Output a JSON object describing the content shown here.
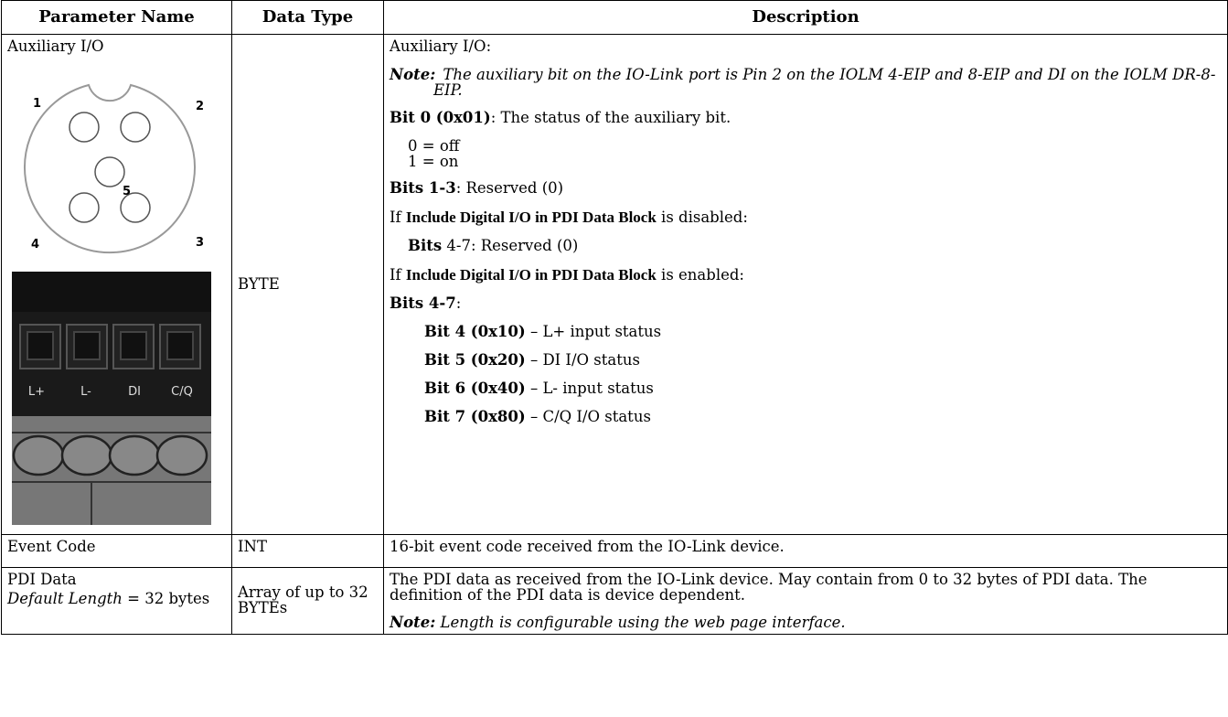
{
  "table": {
    "headers": [
      "Parameter Name",
      "Data Type",
      "Description"
    ],
    "rows": [
      {
        "parameter": [
          [
            {
              "text": "Auxiliary I/O",
              "style": "plain"
            }
          ]
        ],
        "connector_pins": [
          "1",
          "2",
          "3",
          "4",
          "5"
        ],
        "terminal_labels": [
          "L+",
          "L-",
          "DI",
          "C/Q"
        ],
        "data_type": "BYTE",
        "description": [
          {
            "style": "para",
            "runs": [
              {
                "text": "Auxiliary I/O:",
                "style": "plain"
              }
            ]
          },
          {
            "style": "note",
            "runs": [
              {
                "text": "Note:",
                "style": "bold-italic"
              },
              {
                "text": "The auxiliary bit on the IO-Link port is Pin 2 on the IOLM 4-EIP and 8-EIP and DI on the IOLM DR-8-EIP.",
                "style": "italic"
              }
            ]
          },
          {
            "style": "para",
            "runs": [
              {
                "text": "Bit 0 (0x01)",
                "style": "bold"
              },
              {
                "text": ": The status of the auxiliary bit.",
                "style": "plain"
              }
            ]
          },
          {
            "style": "compact",
            "runs": [
              {
                "text": "0 = off",
                "style": "plain"
              }
            ]
          },
          {
            "style": "compact-last",
            "runs": [
              {
                "text": "1 = on",
                "style": "plain"
              }
            ]
          },
          {
            "style": "para",
            "runs": [
              {
                "text": "Bits 1-3",
                "style": "bold"
              },
              {
                "text": ": Reserved (0)",
                "style": "plain"
              }
            ]
          },
          {
            "style": "para",
            "runs": [
              {
                "text": "If ",
                "style": "plain"
              },
              {
                "text": "Include Digital I/O in PDI Data Block",
                "style": "bold-sans"
              },
              {
                "text": " is disabled:",
                "style": "plain"
              }
            ]
          },
          {
            "style": "indent",
            "runs": [
              {
                "text": "Bits",
                "style": "bold"
              },
              {
                "text": " 4-7: Reserved (0)",
                "style": "plain"
              }
            ]
          },
          {
            "style": "para",
            "runs": [
              {
                "text": "If ",
                "style": "plain"
              },
              {
                "text": "Include Digital I/O in PDI Data Block",
                "style": "bold-sans"
              },
              {
                "text": " is enabled:",
                "style": "plain"
              }
            ]
          },
          {
            "style": "para",
            "runs": [
              {
                "text": "Bits 4-7",
                "style": "bold"
              },
              {
                "text": ":",
                "style": "plain"
              }
            ]
          },
          {
            "style": "indent2",
            "runs": [
              {
                "text": "Bit 4 (0x10)",
                "style": "bold"
              },
              {
                "text": " – L+ input status",
                "style": "plain"
              }
            ]
          },
          {
            "style": "indent2",
            "runs": [
              {
                "text": "Bit 5 (0x20)",
                "style": "bold"
              },
              {
                "text": " – DI I/O status",
                "style": "plain"
              }
            ]
          },
          {
            "style": "indent2",
            "runs": [
              {
                "text": "Bit 6 (0x40)",
                "style": "bold"
              },
              {
                "text": " – L- input status",
                "style": "plain"
              }
            ]
          },
          {
            "style": "indent2",
            "runs": [
              {
                "text": "Bit 7 (0x80)",
                "style": "bold"
              },
              {
                "text": " – C/Q I/O status",
                "style": "plain"
              }
            ]
          }
        ]
      },
      {
        "parameter": [
          [
            {
              "text": "Event Code",
              "style": "plain"
            }
          ]
        ],
        "data_type": "INT",
        "description": [
          {
            "style": "para",
            "runs": [
              {
                "text": "16-bit event code received from the IO-Link device.",
                "style": "plain"
              }
            ]
          }
        ]
      },
      {
        "parameter": [
          [
            {
              "text": "PDI Data",
              "style": "plain"
            }
          ],
          [
            {
              "text": "Default Length",
              "style": "italic"
            },
            {
              "text": " = 32 bytes",
              "style": "plain"
            }
          ]
        ],
        "data_type": "Array of up to 32 BYTEs",
        "description": [
          {
            "style": "para",
            "runs": [
              {
                "text": "The PDI data as received from the IO-Link device. May contain from 0 to 32 bytes of PDI data. The definition of the PDI data is device dependent.",
                "style": "plain"
              }
            ]
          },
          {
            "style": "para",
            "runs": [
              {
                "text": "Note:",
                "style": "bold-italic"
              },
              {
                "text": " Length is configurable using the web page interface.",
                "style": "italic"
              }
            ]
          }
        ]
      }
    ]
  }
}
